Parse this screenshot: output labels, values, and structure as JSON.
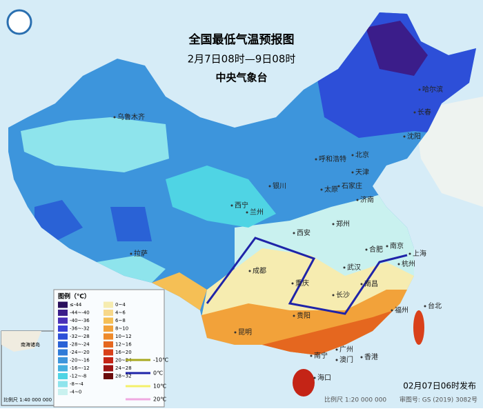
{
  "header": {
    "title": "全国最低气温预报图",
    "subtitle": "2月7日08时—9日08时",
    "agency": "中央气象台"
  },
  "cities": [
    "乌鲁木齐",
    "哈尔滨",
    "长春",
    "沈阳",
    "北京",
    "天津",
    "呼和浩特",
    "石家庄",
    "太原",
    "济南",
    "银川",
    "西宁",
    "兰州",
    "郑州",
    "西安",
    "合肥",
    "南京",
    "上海",
    "杭州",
    "武汉",
    "成都",
    "重庆",
    "长沙",
    "南昌",
    "拉萨",
    "贵阳",
    "昆明",
    "福州",
    "台北",
    "广州",
    "南宁",
    "澳门",
    "香港",
    "海口"
  ],
  "legend": {
    "title": "图例（℃）",
    "cold": [
      {
        "label": "≤-44",
        "color": "#2a0f5c"
      },
      {
        "label": "-44~-40",
        "color": "#3b1d8a"
      },
      {
        "label": "-40~-36",
        "color": "#4a2fb8"
      },
      {
        "label": "-36~-32",
        "color": "#3b3fd6"
      },
      {
        "label": "-32~-28",
        "color": "#2d4fd8"
      },
      {
        "label": "-28~-24",
        "color": "#2a62d6"
      },
      {
        "label": "-24~-20",
        "color": "#2f7bd8"
      },
      {
        "label": "-20~-16",
        "color": "#3d95dc"
      },
      {
        "label": "-16~-12",
        "color": "#45b0e0"
      },
      {
        "label": "-12~-8",
        "color": "#4fd4e4"
      },
      {
        "label": "-8~-4",
        "color": "#8ee4ec"
      },
      {
        "label": "-4~0",
        "color": "#c9f1ef"
      }
    ],
    "warm": [
      {
        "label": "0~4",
        "color": "#f6ecb0"
      },
      {
        "label": "4~6",
        "color": "#f7d88a"
      },
      {
        "label": "6~8",
        "color": "#f5bf55"
      },
      {
        "label": "8~10",
        "color": "#f2a23a"
      },
      {
        "label": "10~12",
        "color": "#ee8a2a"
      },
      {
        "label": "12~16",
        "color": "#e5671f"
      },
      {
        "label": "16~20",
        "color": "#d9401a"
      },
      {
        "label": "20~24",
        "color": "#c42416"
      },
      {
        "label": "24~28",
        "color": "#9c1414"
      },
      {
        "label": "28~32",
        "color": "#6a0c0c"
      }
    ],
    "isotherms": [
      {
        "label": "-10℃",
        "color": "#a8a81e"
      },
      {
        "label": "0℃",
        "color": "#1f24a8"
      },
      {
        "label": "10℃",
        "color": "#f4f06a"
      },
      {
        "label": "20℃",
        "color": "#f0a8e0"
      }
    ]
  },
  "inset": {
    "title": "南海诸岛",
    "scale": "比例尺 1:40 000 000"
  },
  "footer": {
    "issued": "02月07日06时发布",
    "scale": "比例尺 1:20 000 000",
    "review": "审图号: GS (2019) 3082号"
  }
}
